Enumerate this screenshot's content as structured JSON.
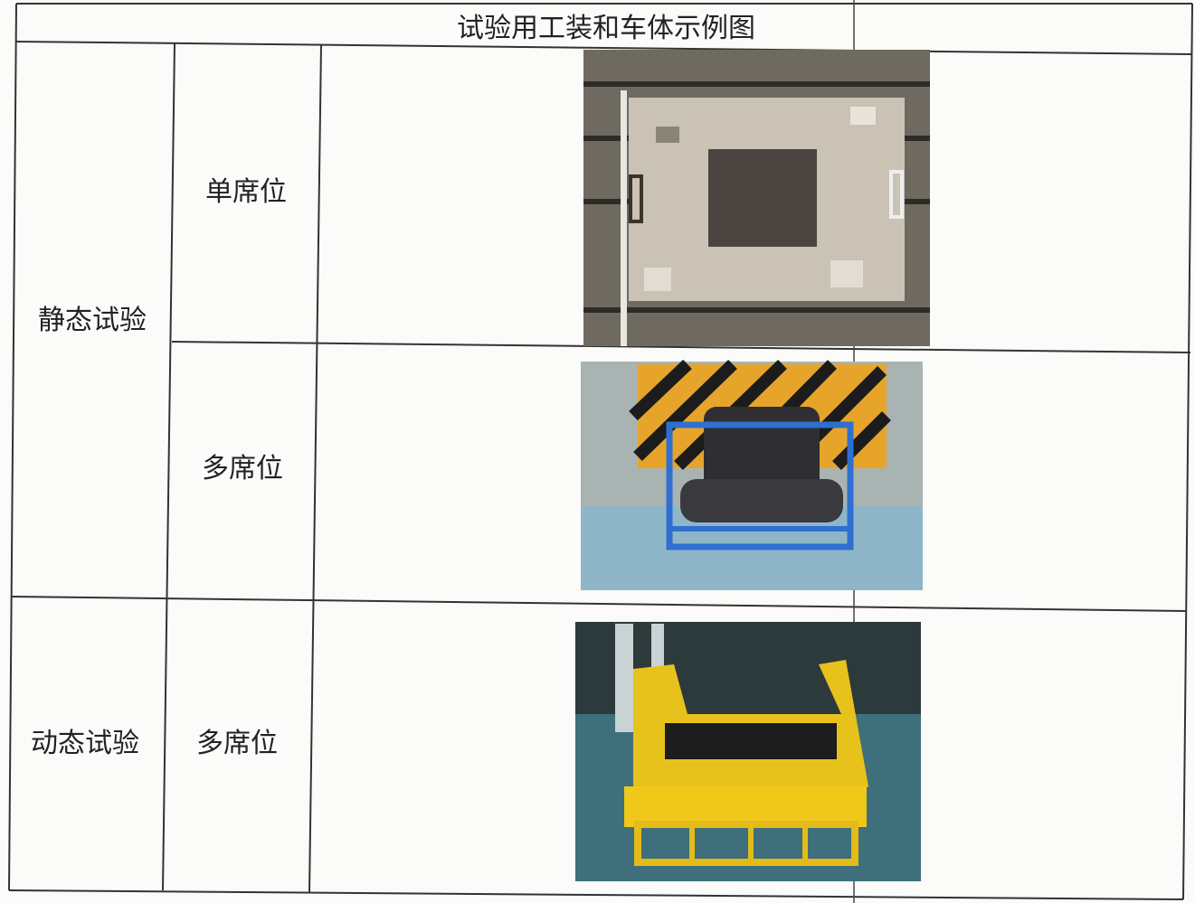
{
  "table": {
    "title": "试验用工装和车体示例图",
    "groups": [
      {
        "label": "静态试验",
        "rows": [
          "单席位",
          "多席位"
        ]
      },
      {
        "label": "动态试验",
        "rows": [
          "多席位"
        ]
      }
    ]
  }
}
